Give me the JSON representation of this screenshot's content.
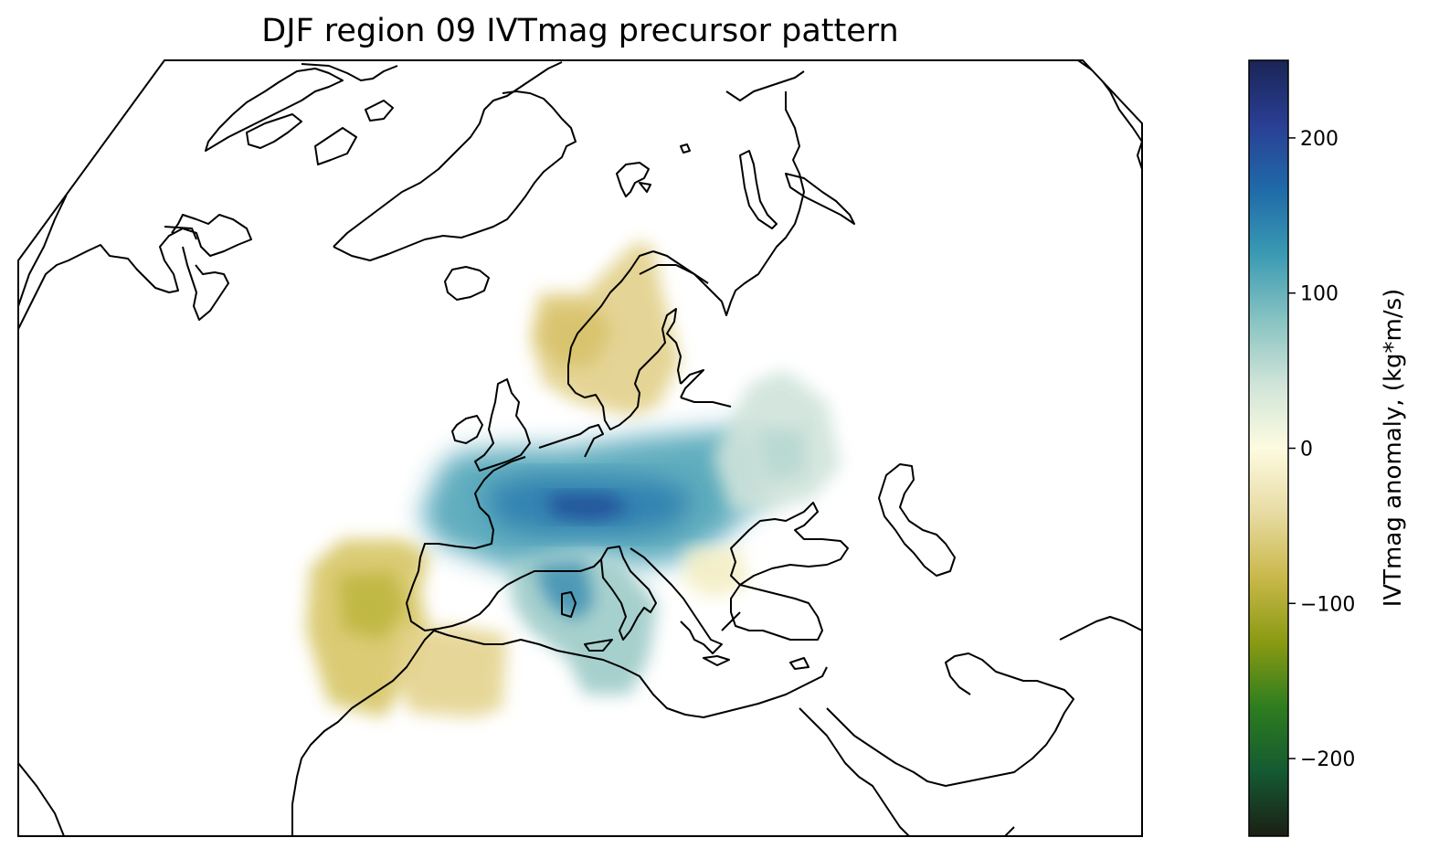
{
  "title": "DJF region 09 IVTmag precursor pattern",
  "colorbar": {
    "label": "IVTmag anomaly, (kg*m/s)",
    "range": [
      -250,
      250
    ],
    "ticks": [
      {
        "value": 200,
        "label": "200"
      },
      {
        "value": 100,
        "label": "100"
      },
      {
        "value": 0,
        "label": "0"
      },
      {
        "value": -100,
        "label": "−100"
      },
      {
        "value": -200,
        "label": "−200"
      }
    ],
    "colormap": [
      "#1b1f14",
      "#145a32",
      "#2e7d1f",
      "#8a9a12",
      "#c9b84a",
      "#e8dba3",
      "#fdfbe0",
      "#cfe4d8",
      "#86c2c2",
      "#3a9ab3",
      "#1f6aa8",
      "#2a3f94",
      "#1a2456"
    ]
  },
  "map": {
    "projection": "orthographic",
    "region": "North Atlantic / Europe",
    "anomaly_regions": [
      {
        "area": "Scandinavia",
        "sign": "negative",
        "approx_value": -40
      },
      {
        "area": "Central Europe (France to Ukraine)",
        "sign": "positive",
        "approx_value": 170
      },
      {
        "area": "Western Russia",
        "sign": "positive",
        "approx_value": 40
      },
      {
        "area": "Italy / Tyrrhenian Sea",
        "sign": "positive",
        "approx_value": 140
      },
      {
        "area": "Iberia / eastern Atlantic",
        "sign": "negative",
        "approx_value": -90
      },
      {
        "area": "Morocco / Algeria",
        "sign": "negative",
        "approx_value": -50
      }
    ]
  }
}
